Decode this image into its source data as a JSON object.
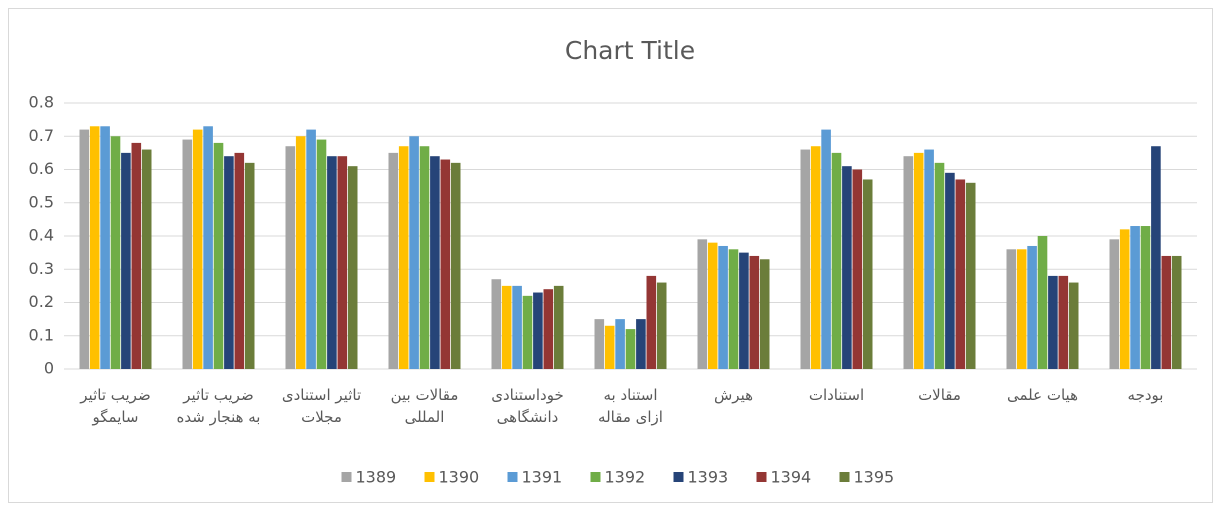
{
  "chart_data": {
    "type": "bar",
    "title": "Chart Title",
    "categories": [
      "ضریب تاثیر\nسایمگو",
      "ضریب تاثیر\nبه هنجار شده",
      "تاثیر استنادی\nمجلات",
      "مقالات بین\nالمللی",
      "خوداستنادی\nدانشگاهی",
      "استناد به\nازای مقاله",
      "هیرش",
      "استنادات",
      "مقالات",
      "هیات علمی",
      "بودجه"
    ],
    "series": [
      {
        "name": "1389",
        "color": "#a5a5a5",
        "values": [
          0.72,
          0.69,
          0.67,
          0.65,
          0.27,
          0.15,
          0.39,
          0.66,
          0.64,
          0.36,
          0.39
        ]
      },
      {
        "name": "1390",
        "color": "#ffc000",
        "values": [
          0.73,
          0.72,
          0.7,
          0.67,
          0.25,
          0.13,
          0.38,
          0.67,
          0.65,
          0.36,
          0.42
        ]
      },
      {
        "name": "1391",
        "color": "#5b9bd5",
        "values": [
          0.73,
          0.73,
          0.72,
          0.7,
          0.25,
          0.15,
          0.37,
          0.72,
          0.66,
          0.37,
          0.43
        ]
      },
      {
        "name": "1392",
        "color": "#70ad47",
        "values": [
          0.7,
          0.68,
          0.69,
          0.67,
          0.22,
          0.12,
          0.36,
          0.65,
          0.62,
          0.4,
          0.43
        ]
      },
      {
        "name": "1393",
        "color": "#264478",
        "values": [
          0.65,
          0.64,
          0.64,
          0.64,
          0.23,
          0.15,
          0.35,
          0.61,
          0.59,
          0.28,
          0.67
        ]
      },
      {
        "name": "1394",
        "color": "#943634",
        "values": [
          0.68,
          0.65,
          0.64,
          0.63,
          0.24,
          0.28,
          0.34,
          0.6,
          0.57,
          0.28,
          0.34
        ]
      },
      {
        "name": "1395",
        "color": "#6b7d3a",
        "values": [
          0.66,
          0.62,
          0.61,
          0.62,
          0.25,
          0.26,
          0.33,
          0.57,
          0.56,
          0.26,
          0.34
        ]
      }
    ],
    "ylim": [
      0,
      0.8
    ],
    "yticks": [
      0,
      0.1,
      0.2,
      0.3,
      0.4,
      0.5,
      0.6,
      0.7,
      0.8
    ],
    "grid": true,
    "legend": "bottom"
  }
}
